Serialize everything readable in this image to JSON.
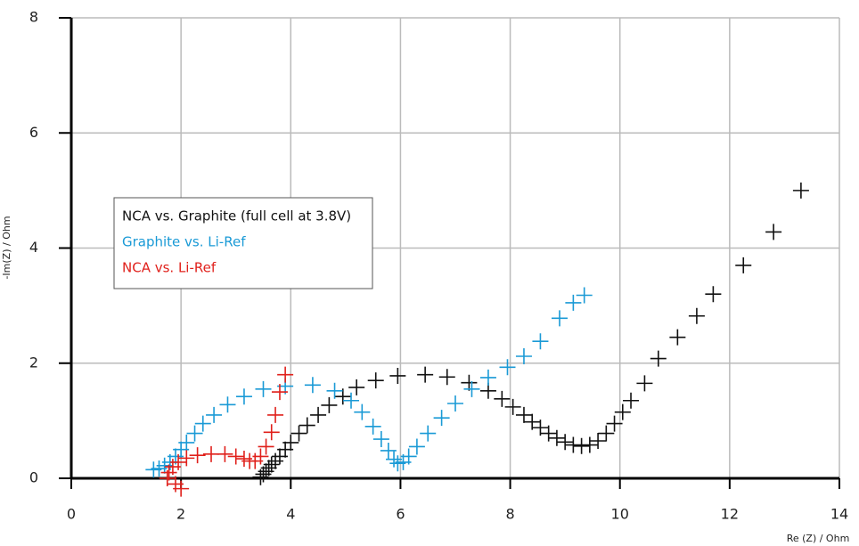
{
  "chart_data": {
    "type": "scatter",
    "xlabel": "Re (Z) / Ohm",
    "ylabel": "-Im(Z) / Ohm",
    "xlim": [
      0,
      14
    ],
    "ylim": [
      0,
      8
    ],
    "xticks": [
      0,
      2,
      4,
      6,
      8,
      10,
      12,
      14
    ],
    "yticks": [
      0,
      2,
      4,
      6,
      8
    ],
    "grid": true,
    "marker": "+",
    "series": [
      {
        "name": "NCA vs. Graphite (full cell at 3.8V)",
        "color": "#111111",
        "x": [
          3.45,
          3.5,
          3.55,
          3.6,
          3.65,
          3.72,
          3.8,
          3.9,
          4.0,
          4.15,
          4.3,
          4.5,
          4.7,
          4.95,
          5.2,
          5.55,
          5.95,
          6.45,
          6.85,
          7.25,
          7.6,
          7.85,
          8.05,
          8.25,
          8.4,
          8.55,
          8.7,
          8.85,
          9.0,
          9.15,
          9.3,
          9.45,
          9.6,
          9.75,
          9.9,
          10.05,
          10.2,
          10.45,
          10.7,
          11.05,
          11.4,
          11.7,
          12.25,
          12.8,
          13.3
        ],
        "y": [
          0.02,
          0.07,
          0.12,
          0.18,
          0.24,
          0.3,
          0.38,
          0.5,
          0.62,
          0.78,
          0.92,
          1.1,
          1.27,
          1.42,
          1.58,
          1.7,
          1.78,
          1.8,
          1.76,
          1.66,
          1.52,
          1.38,
          1.24,
          1.1,
          0.98,
          0.88,
          0.78,
          0.7,
          0.63,
          0.58,
          0.56,
          0.58,
          0.65,
          0.78,
          0.95,
          1.15,
          1.35,
          1.65,
          2.08,
          2.45,
          2.82,
          3.2,
          3.7,
          4.28,
          5.0
        ]
      },
      {
        "name": "Graphite vs. Li-Ref",
        "color": "#1a9ad6",
        "x": [
          1.5,
          1.6,
          1.7,
          1.8,
          1.9,
          2.0,
          2.1,
          2.25,
          2.4,
          2.6,
          2.85,
          3.15,
          3.5,
          3.9,
          4.4,
          4.8,
          5.1,
          5.3,
          5.5,
          5.65,
          5.78,
          5.88,
          5.95,
          6.05,
          6.15,
          6.3,
          6.5,
          6.75,
          7.0,
          7.3,
          7.6,
          7.95,
          8.25,
          8.55,
          8.9,
          9.15,
          9.35
        ],
        "y": [
          0.15,
          0.17,
          0.22,
          0.28,
          0.38,
          0.5,
          0.62,
          0.78,
          0.95,
          1.1,
          1.28,
          1.42,
          1.55,
          1.6,
          1.62,
          1.52,
          1.35,
          1.15,
          0.9,
          0.68,
          0.48,
          0.33,
          0.26,
          0.28,
          0.38,
          0.55,
          0.78,
          1.05,
          1.3,
          1.55,
          1.75,
          1.93,
          2.12,
          2.38,
          2.78,
          3.05,
          3.18
        ]
      },
      {
        "name": "NCA vs. Li-Ref",
        "color": "#e0201b",
        "x": [
          1.75,
          1.78,
          1.85,
          1.95,
          2.1,
          2.3,
          2.55,
          2.8,
          3.0,
          3.15,
          3.25,
          3.35,
          3.45,
          3.55,
          3.65,
          3.72,
          3.8,
          3.9,
          1.9,
          2.0
        ],
        "y": [
          0.0,
          0.1,
          0.2,
          0.28,
          0.35,
          0.4,
          0.42,
          0.42,
          0.38,
          0.34,
          0.3,
          0.3,
          0.38,
          0.55,
          0.8,
          1.1,
          1.5,
          1.8,
          -0.1,
          -0.18
        ]
      }
    ]
  }
}
